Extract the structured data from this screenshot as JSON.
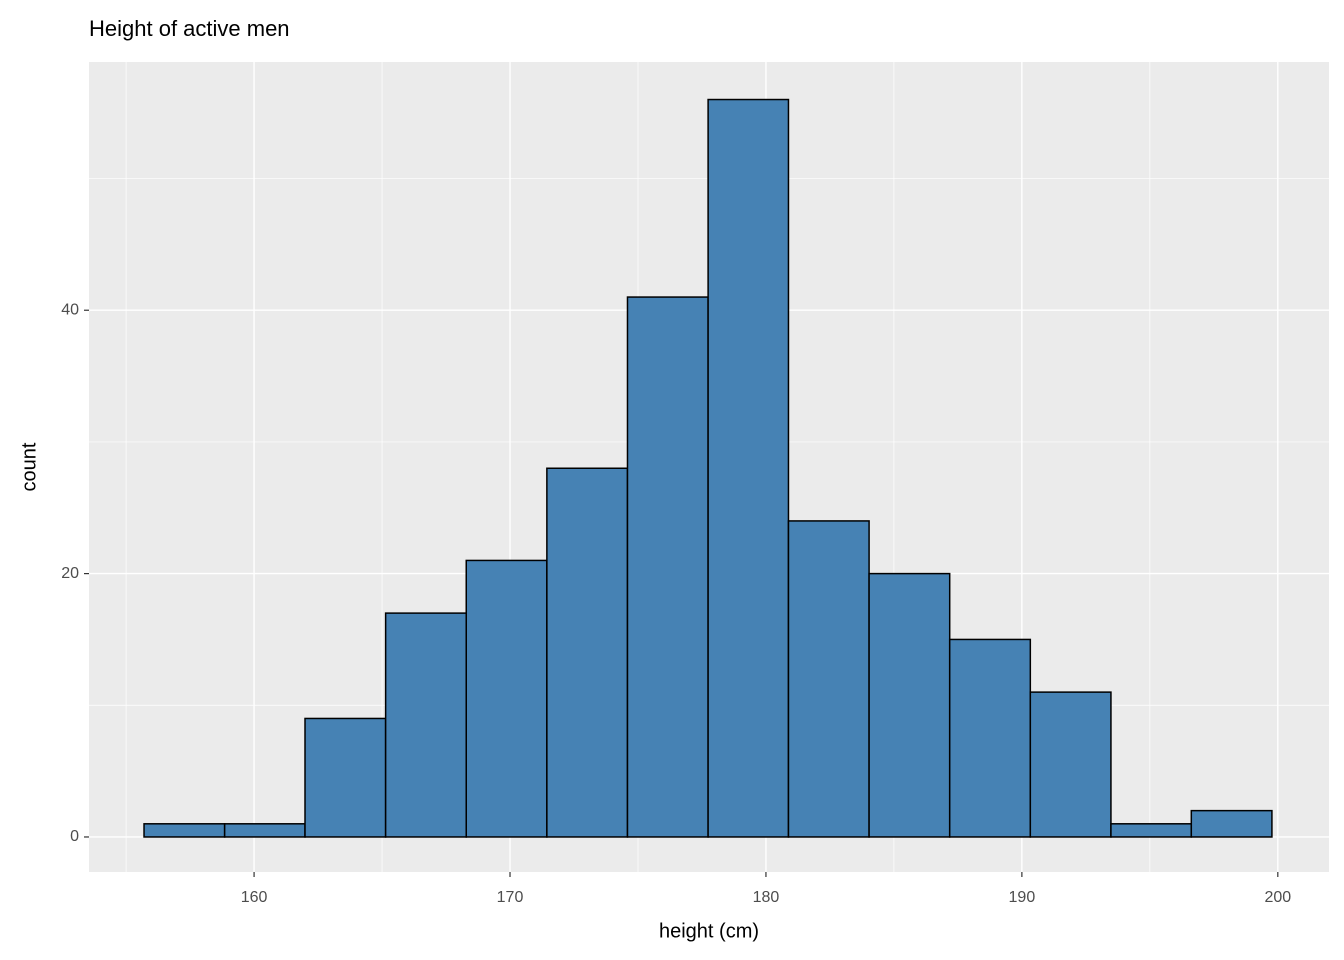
{
  "chart_data": {
    "type": "histogram",
    "title": "Height of active men",
    "x_label": "height (cm)",
    "y_label": "count",
    "bins": [
      155.7,
      158.85,
      161.99,
      165.14,
      168.29,
      171.44,
      174.59,
      177.74,
      180.88,
      184.03,
      187.18,
      190.33,
      193.48,
      196.62,
      199.77
    ],
    "values": [
      1,
      1,
      9,
      17,
      21,
      28,
      41,
      56,
      24,
      20,
      15,
      11,
      1,
      2
    ],
    "color": "#4682b4",
    "edge_color": "#000000",
    "xlim": [
      153.55,
      202.0
    ],
    "ylim": [
      -2.66,
      58.85
    ],
    "xticks": [
      160,
      170,
      180,
      190,
      200
    ],
    "yticks": [
      0,
      20,
      40
    ],
    "grid": true
  }
}
